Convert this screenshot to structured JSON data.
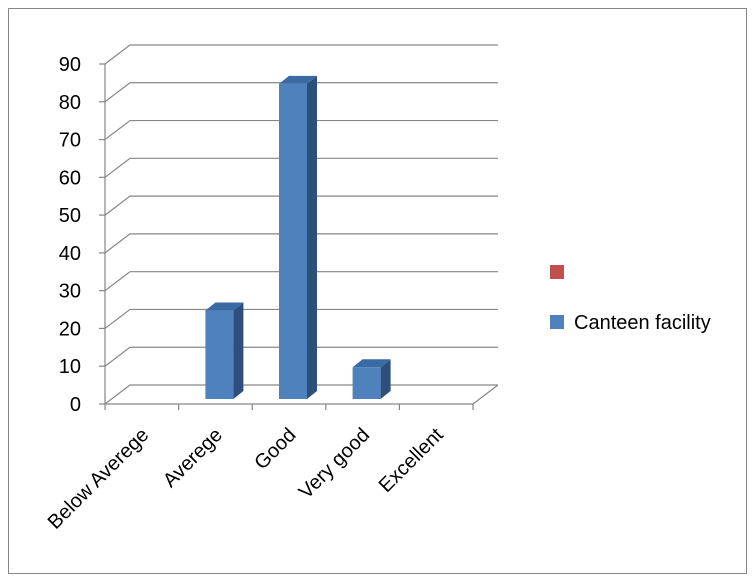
{
  "chart_data": {
    "type": "bar",
    "style": "3d-column",
    "categories": [
      "Below Averege",
      "Averege",
      "Good",
      "Very good",
      "Excellent"
    ],
    "series": [
      {
        "name": "Canteen facility",
        "values": [
          0,
          25,
          85,
          10,
          0
        ]
      }
    ],
    "legend_entries": [
      {
        "label": "",
        "color": "#c0504d"
      },
      {
        "label": "Canteen facility",
        "color": "#4f81bd"
      }
    ],
    "y_ticks": [
      0,
      10,
      20,
      30,
      40,
      50,
      60,
      70,
      80,
      90
    ],
    "ylim": [
      0,
      90
    ],
    "grid": true,
    "legend_position": "right",
    "colors": {
      "bar_front": "#4f81bd",
      "bar_side": "#2e4f7a",
      "bar_top": "#3a6aa3",
      "grid": "#868686",
      "frame_border": "#868686"
    }
  }
}
